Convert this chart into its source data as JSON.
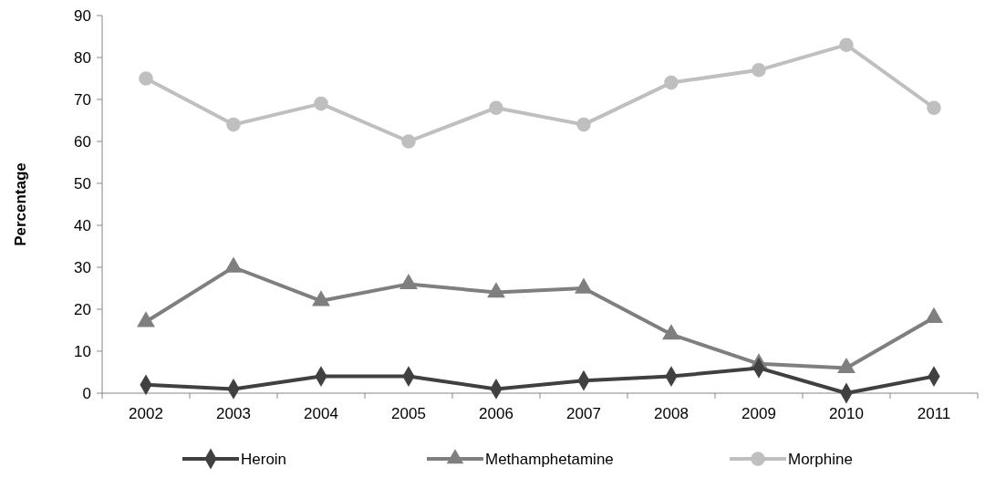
{
  "chart_data": {
    "type": "line",
    "ylabel": "Percentage",
    "categories": [
      "2002",
      "2003",
      "2004",
      "2005",
      "2006",
      "2007",
      "2008",
      "2009",
      "2010",
      "2011"
    ],
    "series": [
      {
        "name": "Heroin",
        "color": "#404040",
        "marker": "diamond",
        "values": [
          2,
          1,
          4,
          4,
          1,
          3,
          4,
          6,
          0,
          4
        ]
      },
      {
        "name": "Methamphetamine",
        "color": "#7f7f7f",
        "marker": "triangle",
        "values": [
          17,
          30,
          22,
          26,
          24,
          25,
          14,
          7,
          6,
          18
        ]
      },
      {
        "name": "Morphine",
        "color": "#bfbfbf",
        "marker": "circle",
        "values": [
          75,
          64,
          69,
          60,
          68,
          64,
          74,
          77,
          83,
          68
        ]
      }
    ],
    "ylim": [
      0,
      90
    ],
    "yticks": [
      0,
      10,
      20,
      30,
      40,
      50,
      60,
      70,
      80,
      90
    ],
    "grid": false,
    "legend": "bottom"
  }
}
